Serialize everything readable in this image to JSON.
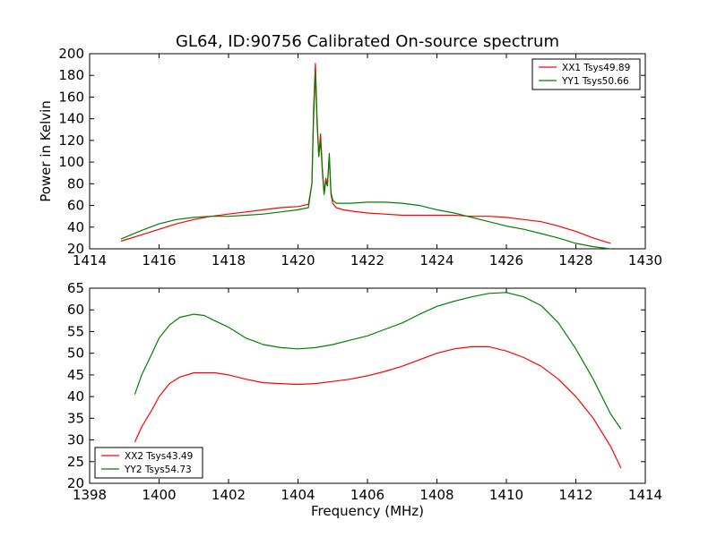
{
  "chart_data": [
    {
      "type": "line",
      "title": "GL64, ID:90756 Calibrated On-source spectrum",
      "xlabel": "",
      "ylabel": "Power in Kelvin",
      "xlim": [
        1414,
        1430
      ],
      "ylim": [
        20,
        200
      ],
      "xticks": [
        1414,
        1416,
        1418,
        1420,
        1422,
        1424,
        1426,
        1428,
        1430
      ],
      "yticks": [
        20,
        40,
        60,
        80,
        100,
        120,
        140,
        160,
        180,
        200
      ],
      "grid": false,
      "legend": "top-right",
      "series": [
        {
          "name": "XX1 Tsys49.89",
          "color": "#ff0000",
          "x": [
            1414.9,
            1415.5,
            1416,
            1416.5,
            1417,
            1417.5,
            1418,
            1418.5,
            1419,
            1419.5,
            1420,
            1420.3,
            1420.4,
            1420.45,
            1420.5,
            1420.55,
            1420.6,
            1420.65,
            1420.7,
            1420.75,
            1420.8,
            1420.85,
            1420.9,
            1420.95,
            1421,
            1421.1,
            1421.3,
            1421.5,
            1422,
            1422.5,
            1423,
            1423.5,
            1424,
            1424.5,
            1425,
            1425.5,
            1426,
            1426.5,
            1427,
            1427.5,
            1428,
            1428.5,
            1429
          ],
          "y": [
            27,
            33,
            38,
            43,
            47,
            50,
            52,
            54,
            56,
            58,
            59,
            61,
            80,
            150,
            191,
            140,
            106,
            126,
            95,
            72,
            85,
            80,
            105,
            70,
            62,
            58,
            56,
            55,
            53,
            52,
            51,
            51,
            51,
            51,
            50,
            50,
            49,
            47,
            45,
            41,
            36,
            30,
            25
          ]
        },
        {
          "name": "YY1 Tsys50.66",
          "color": "#008000",
          "x": [
            1414.9,
            1415.5,
            1416,
            1416.5,
            1417,
            1417.5,
            1418,
            1418.5,
            1419,
            1419.5,
            1420,
            1420.3,
            1420.4,
            1420.45,
            1420.5,
            1420.55,
            1420.6,
            1420.65,
            1420.7,
            1420.75,
            1420.8,
            1420.85,
            1420.9,
            1420.95,
            1421,
            1421.1,
            1421.3,
            1421.5,
            1422,
            1422.5,
            1423,
            1423.5,
            1424,
            1424.5,
            1425,
            1425.5,
            1426,
            1426.5,
            1427,
            1427.5,
            1428,
            1428.5,
            1429
          ],
          "y": [
            29,
            37,
            43,
            47,
            49,
            50,
            50,
            51,
            52,
            54,
            56,
            58,
            80,
            140,
            183,
            135,
            105,
            120,
            92,
            70,
            82,
            78,
            108,
            72,
            65,
            62,
            62,
            62,
            63,
            63,
            62,
            60,
            56,
            53,
            49,
            45,
            41,
            38,
            34,
            30,
            25,
            22,
            20
          ]
        }
      ]
    },
    {
      "type": "line",
      "title": "",
      "xlabel": "Frequency (MHz)",
      "ylabel": "",
      "xlim": [
        1398,
        1414
      ],
      "ylim": [
        20,
        65
      ],
      "xticks": [
        1398,
        1400,
        1402,
        1404,
        1406,
        1408,
        1410,
        1412,
        1414
      ],
      "yticks": [
        20,
        25,
        30,
        35,
        40,
        45,
        50,
        55,
        60,
        65
      ],
      "grid": false,
      "legend": "bottom-left",
      "series": [
        {
          "name": "XX2 Tsys43.49",
          "color": "#ff0000",
          "x": [
            1399.3,
            1399.5,
            1399.8,
            1400,
            1400.3,
            1400.6,
            1401,
            1401.3,
            1401.6,
            1402,
            1402.5,
            1403,
            1403.5,
            1404,
            1404.5,
            1405,
            1405.5,
            1406,
            1406.5,
            1407,
            1407.5,
            1408,
            1408.5,
            1409,
            1409.5,
            1410,
            1410.5,
            1411,
            1411.5,
            1412,
            1412.5,
            1413,
            1413.3
          ],
          "y": [
            29.5,
            33,
            37,
            40,
            43,
            44.5,
            45.5,
            45.5,
            45.5,
            45,
            44,
            43.2,
            43,
            42.8,
            43,
            43.5,
            44,
            44.8,
            45.8,
            47,
            48.5,
            50,
            51,
            51.5,
            51.5,
            50.5,
            49,
            47,
            44,
            40,
            35,
            28.5,
            23.5
          ]
        },
        {
          "name": "YY2 Tsys54.73",
          "color": "#008000",
          "x": [
            1399.3,
            1399.5,
            1399.8,
            1400,
            1400.3,
            1400.6,
            1401,
            1401.3,
            1401.6,
            1402,
            1402.5,
            1403,
            1403.5,
            1404,
            1404.5,
            1405,
            1405.5,
            1406,
            1406.5,
            1407,
            1407.5,
            1408,
            1408.5,
            1409,
            1409.5,
            1410,
            1410.5,
            1411,
            1411.5,
            1412,
            1412.5,
            1413,
            1413.3
          ],
          "y": [
            40.5,
            45,
            50,
            53.5,
            56.5,
            58.3,
            59,
            58.7,
            57.5,
            56,
            53.5,
            52,
            51.3,
            51,
            51.3,
            52,
            53,
            54,
            55.5,
            57,
            59,
            60.8,
            62,
            63,
            63.8,
            64,
            63,
            61,
            57,
            51,
            44,
            36,
            32.5
          ]
        }
      ]
    }
  ]
}
